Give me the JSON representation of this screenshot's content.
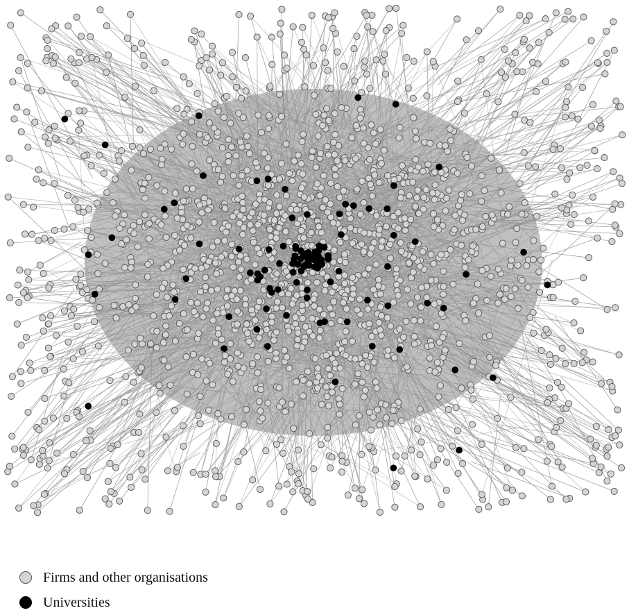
{
  "legend": {
    "firms": {
      "label": "Firms and other organisations",
      "marker_icon": "grey-circle-icon"
    },
    "universities": {
      "label": "Universities",
      "marker_icon": "black-circle-icon"
    }
  },
  "colors": {
    "firm_fill": "#d4d4d4",
    "firm_stroke": "#555555",
    "university_fill": "#000000",
    "edge": "#9a9a9a",
    "dense_core": "#8c8c8c",
    "background": "#ffffff"
  }
}
